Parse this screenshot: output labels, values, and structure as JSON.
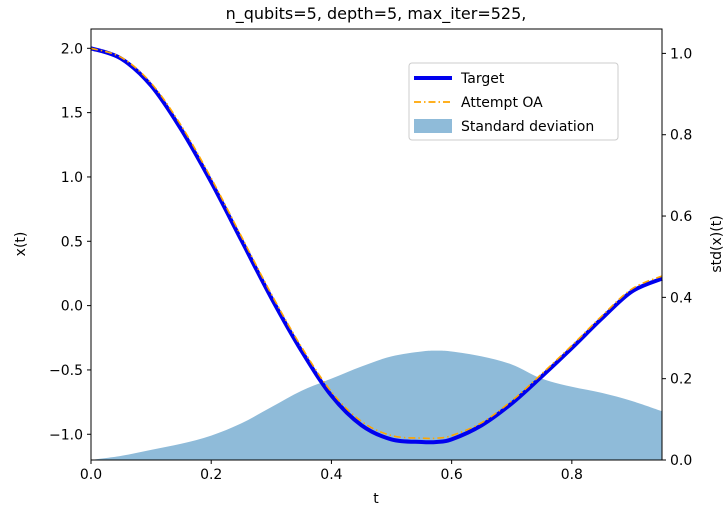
{
  "chart_data": {
    "type": "line",
    "title": "n_qubits=5, depth=5, max_iter=525,",
    "xlabel": "t",
    "ylabel": "x(t)",
    "y2label": "std(x)(t)",
    "xlim": [
      0.0,
      0.95
    ],
    "ylim": [
      -1.2,
      2.15
    ],
    "y2lim": [
      0.0,
      1.06
    ],
    "xticks": [
      "0.0",
      "0.2",
      "0.4",
      "0.6",
      "0.8"
    ],
    "yticks": [
      "2.0",
      "1.5",
      "1.0",
      "0.5",
      "0.0",
      "−0.5",
      "−1.0"
    ],
    "y2ticks": [
      "1.0",
      "0.8",
      "0.6",
      "0.4",
      "0.2",
      "0.0"
    ],
    "grid": false,
    "legend": "upper right",
    "series": [
      {
        "name": "Target",
        "axis": "left",
        "style": "solid",
        "color": "#0000ee",
        "x": [
          0.0,
          0.05,
          0.1,
          0.15,
          0.2,
          0.25,
          0.3,
          0.35,
          0.4,
          0.45,
          0.5,
          0.55,
          0.575,
          0.6,
          0.65,
          0.7,
          0.75,
          0.8,
          0.85,
          0.9,
          0.95
        ],
        "y": [
          2.0,
          1.92,
          1.71,
          1.37,
          0.96,
          0.51,
          0.06,
          -0.35,
          -0.7,
          -0.93,
          -1.04,
          -1.06,
          -1.06,
          -1.04,
          -0.93,
          -0.76,
          -0.55,
          -0.33,
          -0.1,
          0.11,
          0.21
        ]
      },
      {
        "name": "Attempt OA",
        "axis": "left",
        "style": "dashdot",
        "color": "#ffa500",
        "x": [
          0.0,
          0.05,
          0.1,
          0.15,
          0.2,
          0.25,
          0.3,
          0.35,
          0.4,
          0.45,
          0.5,
          0.55,
          0.575,
          0.6,
          0.65,
          0.7,
          0.75,
          0.8,
          0.85,
          0.9,
          0.95
        ],
        "y": [
          2.0,
          1.93,
          1.73,
          1.4,
          0.99,
          0.54,
          0.09,
          -0.32,
          -0.67,
          -0.9,
          -1.01,
          -1.03,
          -1.03,
          -1.01,
          -0.91,
          -0.74,
          -0.53,
          -0.31,
          -0.08,
          0.13,
          0.23
        ]
      },
      {
        "name": "Standard deviation",
        "axis": "right",
        "style": "fill",
        "color": "#1f77b4",
        "x": [
          0.0,
          0.05,
          0.1,
          0.15,
          0.2,
          0.25,
          0.3,
          0.35,
          0.4,
          0.45,
          0.5,
          0.55,
          0.575,
          0.6,
          0.65,
          0.7,
          0.75,
          0.8,
          0.85,
          0.9,
          0.95
        ],
        "y": [
          0.0,
          0.01,
          0.025,
          0.04,
          0.06,
          0.09,
          0.13,
          0.17,
          0.2,
          0.23,
          0.255,
          0.267,
          0.269,
          0.267,
          0.255,
          0.235,
          0.2,
          0.18,
          0.165,
          0.145,
          0.12
        ]
      }
    ]
  }
}
